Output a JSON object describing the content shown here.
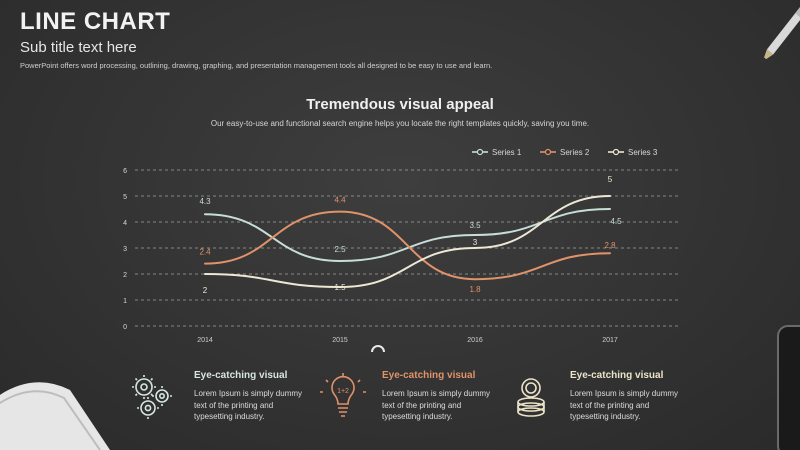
{
  "header": {
    "title": "LINE CHART",
    "subtitle": "Sub title text here",
    "description": "PowerPoint offers word processing, outlining, drawing, graphing, and presentation management tools all designed to be easy to use and learn."
  },
  "chart_data": {
    "type": "line",
    "title": "Tremendous visual appeal",
    "subtitle": "Our easy-to-use and functional search engine helps you locate the right templates quickly, saving you time.",
    "categories": [
      "2014",
      "2015",
      "2016",
      "2017"
    ],
    "ylim": [
      0,
      6
    ],
    "yticks": [
      "0",
      "1",
      "2",
      "3",
      "4",
      "5",
      "6"
    ],
    "grid": true,
    "legend_position": "top-right",
    "series": [
      {
        "name": "Series 1",
        "values": [
          4.3,
          2.5,
          3.5,
          4.5
        ],
        "color": "#c8ddd8"
      },
      {
        "name": "Series 2",
        "values": [
          2.4,
          4.4,
          1.8,
          2.8
        ],
        "color": "#e0926a"
      },
      {
        "name": "Series 3",
        "values": [
          2,
          1.5,
          3,
          5
        ],
        "color": "#ece8d6"
      }
    ]
  },
  "features": [
    {
      "title": "Eye-catching visual",
      "text": "Lorem Ipsum is simply dummy text of the printing and typesetting industry.",
      "icon": "gears-icon",
      "color": "#d6e6e0"
    },
    {
      "title": "Eye-catching visual",
      "text": "Lorem Ipsum is simply dummy text of the printing and typesetting industry.",
      "icon": "lightbulb-icon",
      "color": "#e0926a"
    },
    {
      "title": "Eye-catching visual",
      "text": "Lorem Ipsum is simply dummy text of the printing and typesetting industry.",
      "icon": "coins-icon",
      "color": "#ece4c8"
    }
  ]
}
